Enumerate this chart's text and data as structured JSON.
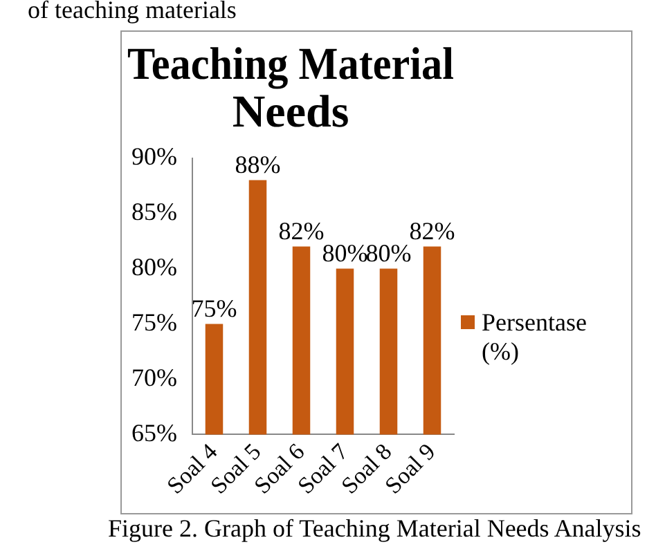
{
  "chart_data": {
    "type": "bar",
    "title": [
      "Teaching Material",
      "Needs"
    ],
    "categories": [
      "Soal 4",
      "Soal 5",
      "Soal 6",
      "Soal 7",
      "Soal 8",
      "Soal 9"
    ],
    "series": [
      {
        "name": "Persentase (%)",
        "color": "#c55a11",
        "values": [
          75,
          88,
          82,
          80,
          80,
          82
        ],
        "value_labels": [
          "75%",
          "88%",
          "82%",
          "80%",
          "80%",
          "82%"
        ]
      }
    ],
    "ylim": [
      65,
      90
    ],
    "yticks": [
      {
        "value": 65,
        "label": "65%"
      },
      {
        "value": 70,
        "label": "70%"
      },
      {
        "value": 75,
        "label": "75%"
      },
      {
        "value": 80,
        "label": "80%"
      },
      {
        "value": 85,
        "label": "85%"
      },
      {
        "value": 90,
        "label": "90%"
      }
    ],
    "grid": false,
    "legend": "right",
    "annotations": [
      "of teaching materials",
      "Figure 2. Graph of Teaching Material Needs Analysis"
    ]
  }
}
